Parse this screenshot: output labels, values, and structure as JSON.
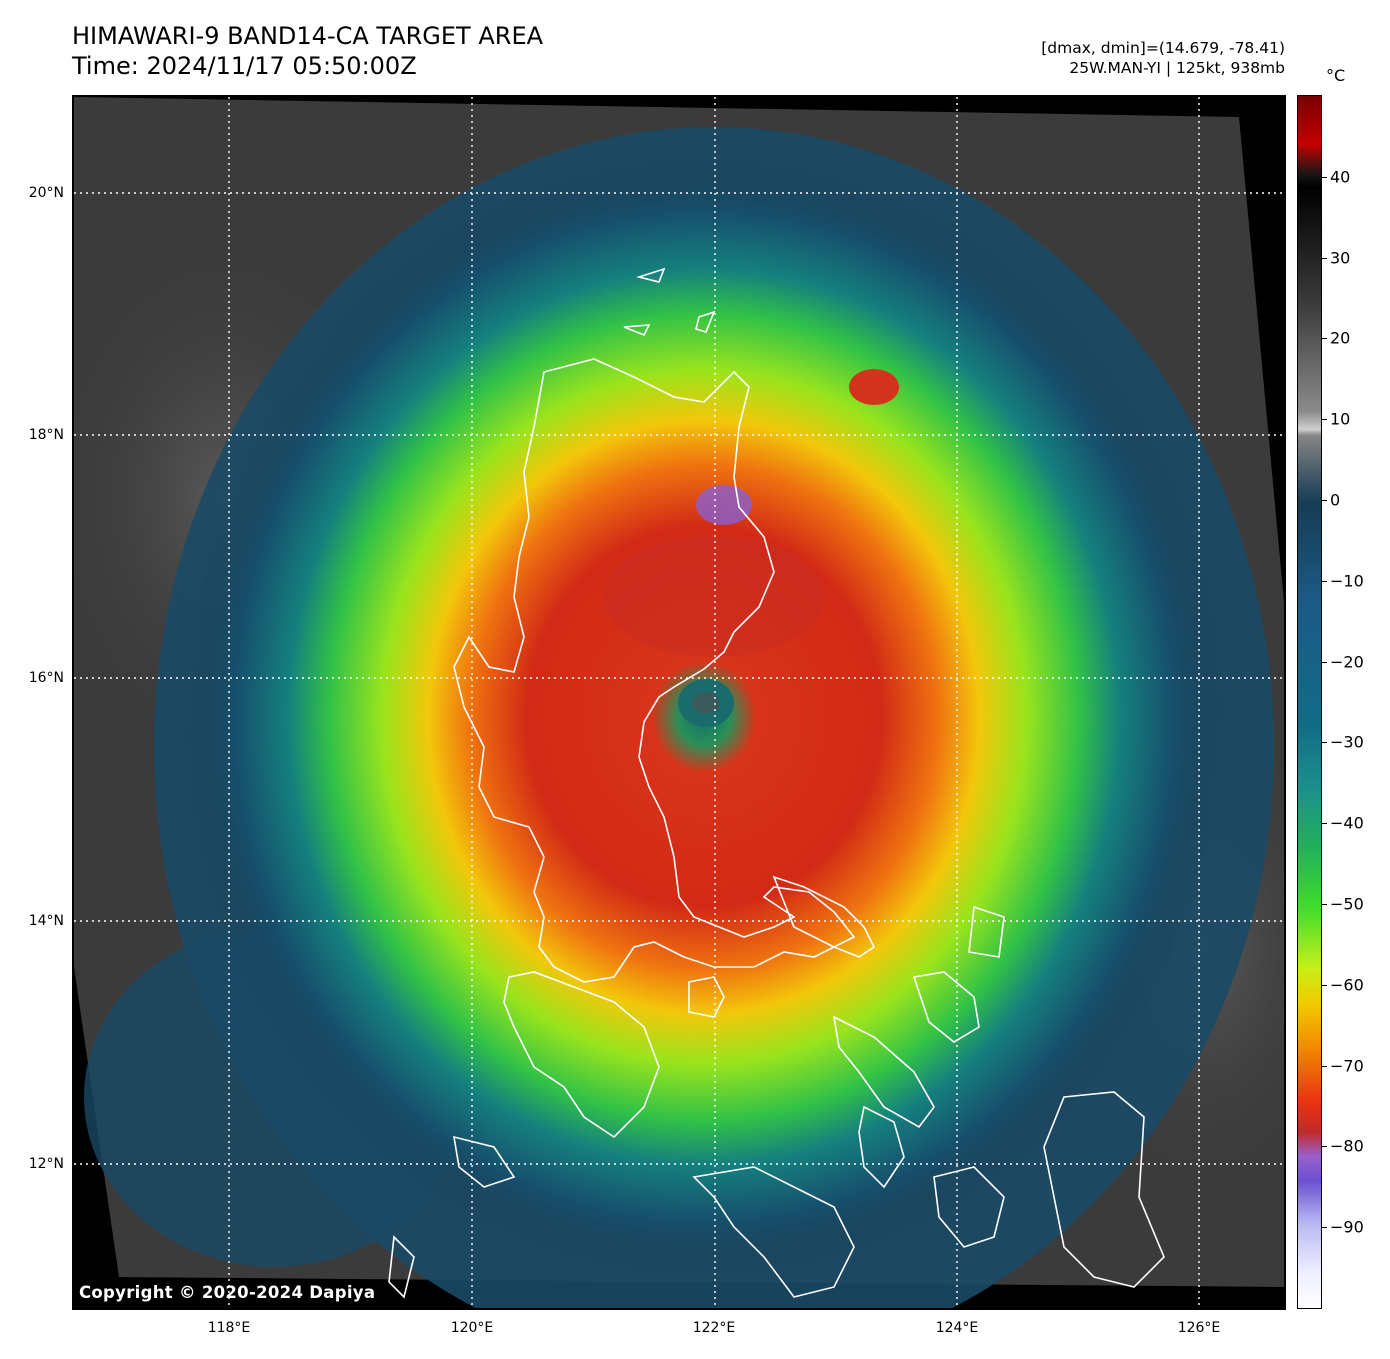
{
  "header": {
    "title_line1": "HIMAWARI-9 BAND14-CA TARGET AREA",
    "title_line2": "Time: 2024/11/17 05:50:00Z",
    "info_line1": "[dmax, dmin]=(14.679, -78.41)",
    "info_line2": "25W.MAN-YI | 125kt, 938mb"
  },
  "map": {
    "latitude_labels": [
      "20°N",
      "18°N",
      "16°N",
      "14°N",
      "12°N"
    ],
    "longitude_labels": [
      "118°E",
      "120°E",
      "122°E",
      "124°E",
      "126°E"
    ],
    "copyright": "Copyright © 2020-2024 Dapiya",
    "storm_center": {
      "lat": 15.8,
      "lon": 121.95
    }
  },
  "colorbar": {
    "unit": "°C",
    "ticks": [
      "40",
      "30",
      "20",
      "10",
      "0",
      "−10",
      "−20",
      "−30",
      "−40",
      "−50",
      "−60",
      "−70",
      "−80",
      "−90"
    ],
    "range": [
      -100,
      50
    ]
  },
  "colors": {
    "land_outline": "#ffffff",
    "grid": "#ffffff",
    "cold_top": "#d9291b",
    "eye": "#1a6b6b"
  }
}
